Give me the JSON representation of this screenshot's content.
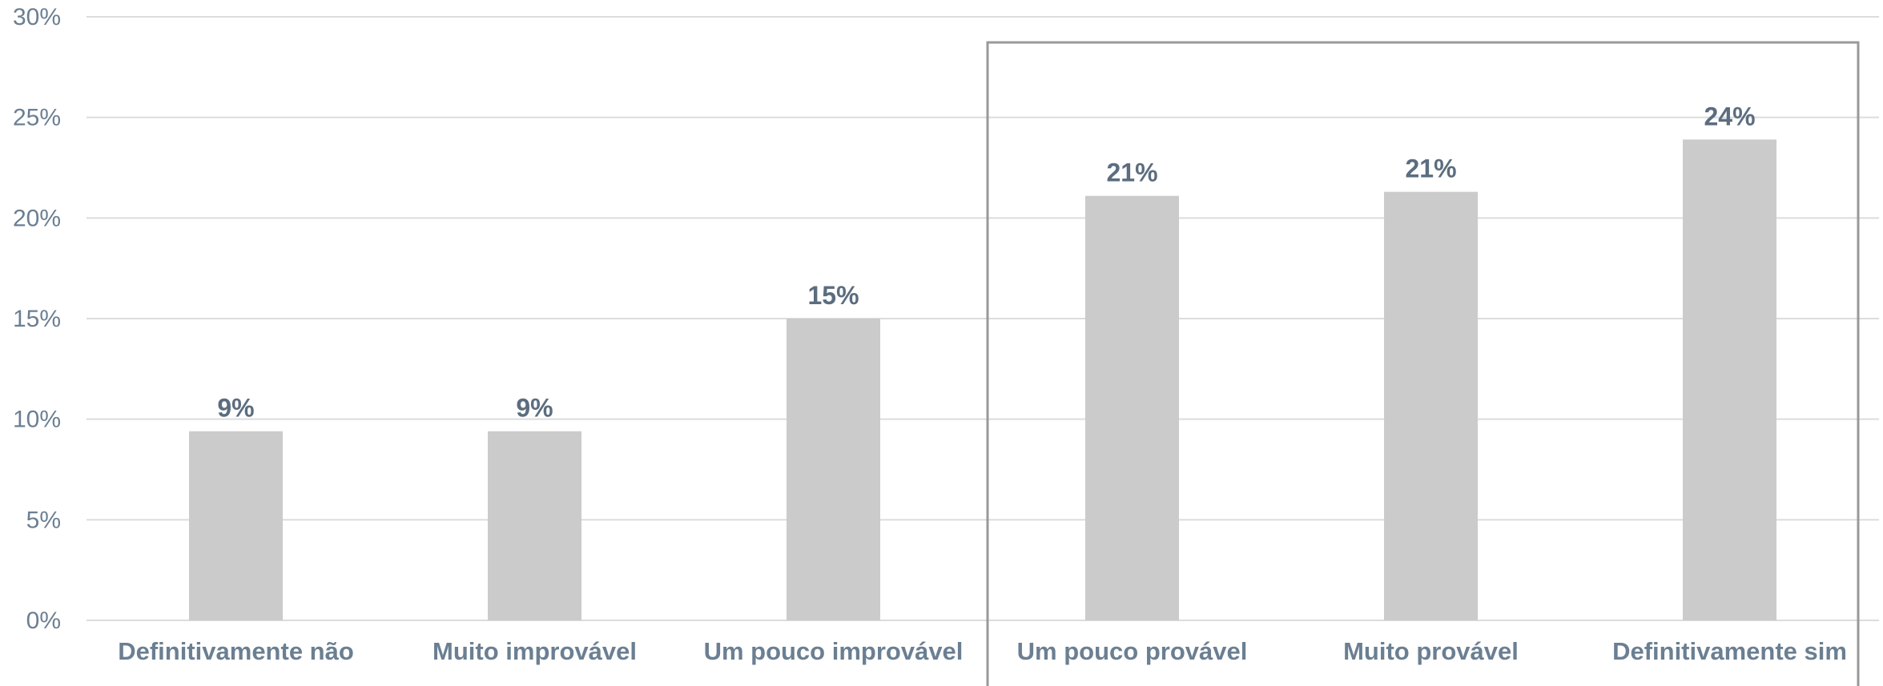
{
  "chart_data": {
    "type": "bar",
    "categories": [
      "Definitivamente não",
      "Muito improvável",
      "Um pouco improvável",
      "Um pouco provável",
      "Muito provável",
      "Definitivamente sim"
    ],
    "values": [
      9.4,
      9.4,
      15.0,
      21.1,
      21.3,
      23.9
    ],
    "data_labels": [
      "9%",
      "9%",
      "15%",
      "21%",
      "21%",
      "24%"
    ],
    "y_ticks": [
      "0%",
      "5%",
      "10%",
      "15%",
      "20%",
      "25%",
      "30%"
    ],
    "ylim": [
      0,
      30
    ],
    "grid": true,
    "highlight": {
      "from_category": 3,
      "to_category": 5,
      "color": "#999999"
    },
    "colors": {
      "bar": "#cbcbcb",
      "tick_text": "#6b7f92",
      "label_text": "#5b6d7f",
      "grid": "#dcdcdc"
    }
  }
}
